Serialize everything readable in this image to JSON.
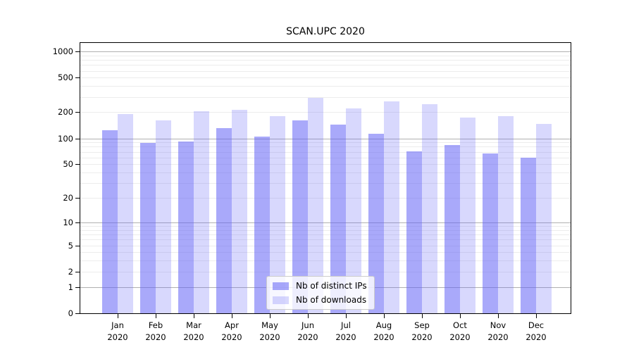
{
  "chart_data": {
    "type": "bar",
    "title": "SCAN.UPC 2020",
    "categories": [
      "Jan 2020",
      "Feb 2020",
      "Mar 2020",
      "Apr 2020",
      "May 2020",
      "Jun 2020",
      "Jul 2020",
      "Aug 2020",
      "Sep 2020",
      "Oct 2020",
      "Nov 2020",
      "Dec 2020"
    ],
    "series": [
      {
        "name": "Nb of distinct IPs",
        "color": "rgba(99, 99, 246, 0.55)",
        "values": [
          124,
          88,
          92,
          131,
          105,
          160,
          143,
          113,
          71,
          84,
          67,
          60
        ]
      },
      {
        "name": "Nb of downloads",
        "color": "rgba(99, 99, 246, 0.25)",
        "values": [
          191,
          162,
          207,
          214,
          180,
          295,
          220,
          268,
          247,
          175,
          180,
          146
        ]
      }
    ],
    "yscale": "symlog-log1p",
    "yticks": [
      0,
      1,
      2,
      5,
      10,
      20,
      50,
      100,
      200,
      500,
      1000
    ],
    "ylim": [
      0,
      1250
    ],
    "xlabel": "",
    "ylabel": "",
    "grid": "on",
    "major_grid_color": "#b0b0b0",
    "minor_grid_color": "#ececec",
    "legend_position": "bottom-center"
  }
}
